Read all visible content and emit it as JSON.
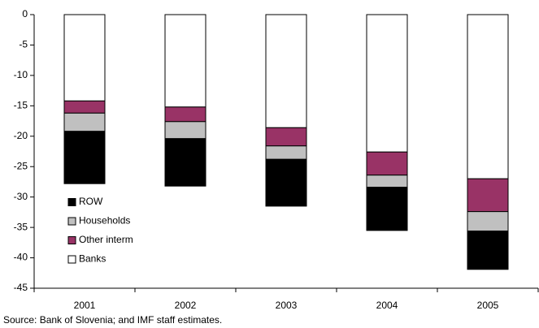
{
  "chart_data": {
    "type": "stacked_bar",
    "categories": [
      "2001",
      "2002",
      "2003",
      "2004",
      "2005"
    ],
    "series": [
      {
        "name": "ROW",
        "color": "#000000",
        "values": [
          -8.6,
          -7.8,
          -7.7,
          -7.1,
          -6.3
        ]
      },
      {
        "name": "Households",
        "color": "#c0c0c0",
        "values": [
          -3.0,
          -2.8,
          -2.2,
          -2.0,
          -3.2
        ]
      },
      {
        "name": "Other interm",
        "color": "#993366",
        "values": [
          -2.0,
          -2.4,
          -3.0,
          -3.8,
          -5.4
        ]
      },
      {
        "name": "Banks",
        "color": "#ffffff",
        "values": [
          -14.2,
          -15.2,
          -18.6,
          -22.6,
          -27.0
        ]
      }
    ],
    "ylim": [
      -45,
      0
    ],
    "yticks": [
      0,
      -5,
      -10,
      -15,
      -20,
      -25,
      -30,
      -35,
      -40,
      -45
    ],
    "legend": "lower-left",
    "source": "Source: Bank of Slovenia; and IMF staff estimates."
  }
}
